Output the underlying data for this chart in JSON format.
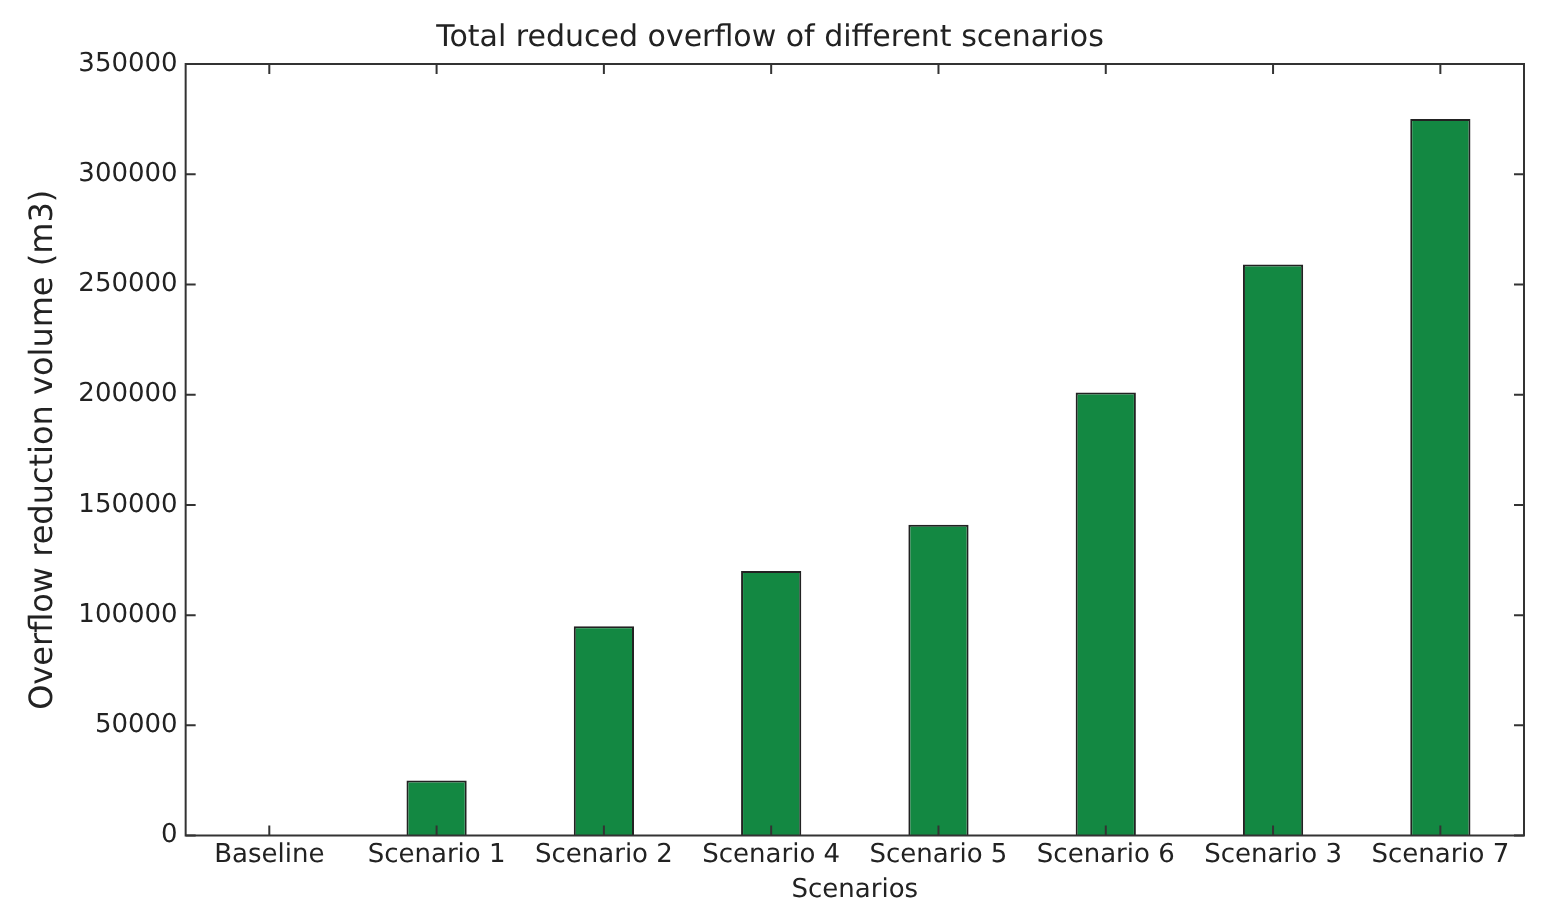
{
  "chart_data": {
    "type": "bar",
    "title": "Total reduced overflow of different scenarios",
    "xlabel": "Scenarios",
    "ylabel": "Overflow reduction volume (m3)",
    "categories": [
      "Baseline",
      "Scenario 1",
      "Scenario 2",
      "Scenario 4",
      "Scenario 5",
      "Scenario 6",
      "Scenario 3",
      "Scenario 7"
    ],
    "values": [
      0,
      25000,
      95000,
      120000,
      141000,
      201000,
      259000,
      325000
    ],
    "color": "#138842",
    "ylim": [
      0,
      350000
    ],
    "yticks": [
      0,
      50000,
      100000,
      150000,
      200000,
      250000,
      300000,
      350000
    ],
    "grid": false,
    "legend": false
  }
}
